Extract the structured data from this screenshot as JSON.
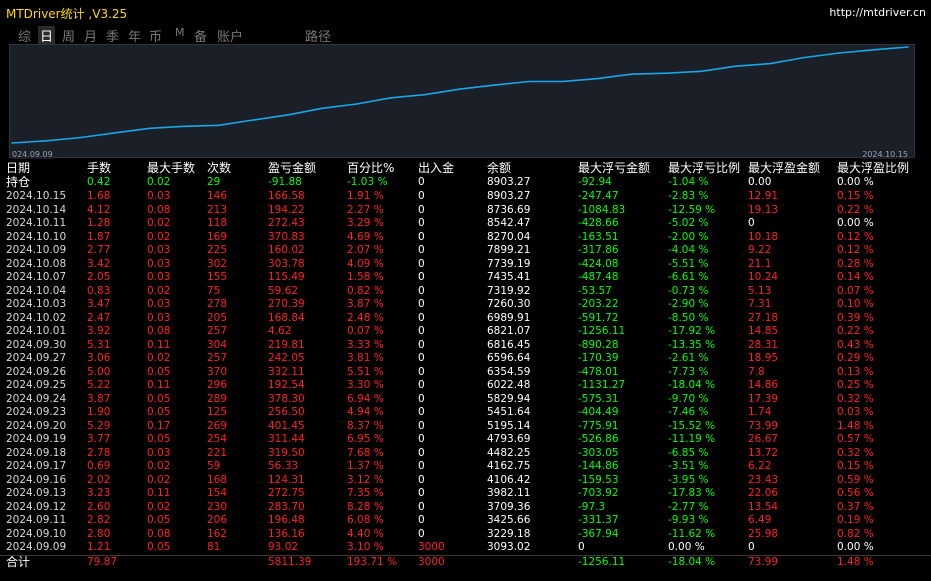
{
  "window": {
    "title": "MTDriver统计 ,V3.25",
    "url": "http://mtdriver.cn"
  },
  "tabs": [
    {
      "label": "综",
      "active": false
    },
    {
      "label": "日",
      "active": true
    },
    {
      "label": "周",
      "active": false
    },
    {
      "label": "月",
      "active": false
    },
    {
      "label": "季",
      "active": false
    },
    {
      "label": "年",
      "active": false
    },
    {
      "label": "币",
      "active": false
    },
    {
      "label": "M",
      "active": false
    },
    {
      "label": "备",
      "active": false
    },
    {
      "label": "账户",
      "active": false
    },
    {
      "label": "路径",
      "active": false
    }
  ],
  "chart": {
    "start_label": "024.09.09",
    "end_label": "2024.10.15",
    "line_color": "#19a6e8"
  },
  "chart_data": {
    "type": "line",
    "x": [
      "2024.09.09",
      "2024.09.10",
      "2024.09.11",
      "2024.09.12",
      "2024.09.13",
      "2024.09.16",
      "2024.09.17",
      "2024.09.18",
      "2024.09.19",
      "2024.09.20",
      "2024.09.23",
      "2024.09.24",
      "2024.09.25",
      "2024.09.26",
      "2024.09.27",
      "2024.09.30",
      "2024.10.01",
      "2024.10.02",
      "2024.10.03",
      "2024.10.04",
      "2024.10.07",
      "2024.10.08",
      "2024.10.09",
      "2024.10.10",
      "2024.10.11",
      "2024.10.14",
      "2024.10.15"
    ],
    "values": [
      3093.02,
      3229.18,
      3425.66,
      3709.36,
      3982.11,
      4106.42,
      4162.75,
      4482.25,
      4793.69,
      5195.14,
      5451.64,
      5829.94,
      6022.48,
      6354.59,
      6596.64,
      6816.45,
      6821.07,
      6989.91,
      7260.3,
      7319.92,
      7435.41,
      7739.19,
      7899.21,
      8270.04,
      8542.47,
      8736.69,
      8903.27
    ]
  },
  "table": {
    "headers": [
      "日期",
      "手数",
      "最大手数",
      "次数",
      "盈亏金额",
      "百分比%",
      "出入金",
      "余额",
      "最大浮亏金额",
      "最大浮亏比例",
      "最大浮盈金额",
      "最大浮盈比例"
    ],
    "holding": [
      "持仓",
      "0.42",
      "0.02",
      "29",
      "-91.88",
      "-1.03 %",
      "0",
      "8903.27",
      "-92.94",
      "-1.04 %",
      "0.00",
      "0.00 %"
    ],
    "rows": [
      [
        "2024.10.15",
        "1.68",
        "0.03",
        "146",
        "166.58",
        "1.91 %",
        "0",
        "8903.27",
        "-247.47",
        "-2.83 %",
        "12.91",
        "0.15 %"
      ],
      [
        "2024.10.14",
        "4.12",
        "0.08",
        "213",
        "194.22",
        "2.27 %",
        "0",
        "8736.69",
        "-1084.83",
        "-12.59 %",
        "19.13",
        "0.22 %"
      ],
      [
        "2024.10.11",
        "1.28",
        "0.02",
        "118",
        "272.43",
        "3.29 %",
        "0",
        "8542.47",
        "-428.66",
        "-5.02 %",
        "0",
        "0.00 %"
      ],
      [
        "2024.10.10",
        "1.87",
        "0.02",
        "169",
        "370.83",
        "4.69 %",
        "0",
        "8270.04",
        "-163.51",
        "-2.00 %",
        "10.18",
        "0.12 %"
      ],
      [
        "2024.10.09",
        "2.77",
        "0.03",
        "225",
        "160.02",
        "2.07 %",
        "0",
        "7899.21",
        "-317.86",
        "-4.04 %",
        "9.22",
        "0.12 %"
      ],
      [
        "2024.10.08",
        "3.42",
        "0.03",
        "302",
        "303.78",
        "4.09 %",
        "0",
        "7739.19",
        "-424.08",
        "-5.51 %",
        "21.1",
        "0.28 %"
      ],
      [
        "2024.10.07",
        "2.05",
        "0.03",
        "155",
        "115.49",
        "1.58 %",
        "0",
        "7435.41",
        "-487.48",
        "-6.61 %",
        "10.24",
        "0.14 %"
      ],
      [
        "2024.10.04",
        "0.83",
        "0.02",
        "75",
        "59.62",
        "0.82 %",
        "0",
        "7319.92",
        "-53.57",
        "-0.73 %",
        "5.13",
        "0.07 %"
      ],
      [
        "2024.10.03",
        "3.47",
        "0.03",
        "278",
        "270.39",
        "3.87 %",
        "0",
        "7260.30",
        "-203.22",
        "-2.90 %",
        "7.31",
        "0.10 %"
      ],
      [
        "2024.10.02",
        "2.47",
        "0.03",
        "205",
        "168.84",
        "2.48 %",
        "0",
        "6989.91",
        "-591.72",
        "-8.50 %",
        "27.18",
        "0.39 %"
      ],
      [
        "2024.10.01",
        "3.92",
        "0.08",
        "257",
        "4.62",
        "0.07 %",
        "0",
        "6821.07",
        "-1256.11",
        "-17.92 %",
        "14.85",
        "0.22 %"
      ],
      [
        "2024.09.30",
        "5.31",
        "0.11",
        "304",
        "219.81",
        "3.33 %",
        "0",
        "6816.45",
        "-890.28",
        "-13.35 %",
        "28.31",
        "0.43 %"
      ],
      [
        "2024.09.27",
        "3.06",
        "0.02",
        "257",
        "242.05",
        "3.81 %",
        "0",
        "6596.64",
        "-170.39",
        "-2.61 %",
        "18.95",
        "0.29 %"
      ],
      [
        "2024.09.26",
        "5.00",
        "0.05",
        "370",
        "332.11",
        "5.51 %",
        "0",
        "6354.59",
        "-478.01",
        "-7.73 %",
        "7.8",
        "0.13 %"
      ],
      [
        "2024.09.25",
        "5.22",
        "0.11",
        "296",
        "192.54",
        "3.30 %",
        "0",
        "6022.48",
        "-1131.27",
        "-18.04 %",
        "14.86",
        "0.25 %"
      ],
      [
        "2024.09.24",
        "3.87",
        "0.05",
        "289",
        "378.30",
        "6.94 %",
        "0",
        "5829.94",
        "-575.31",
        "-9.70 %",
        "17.39",
        "0.32 %"
      ],
      [
        "2024.09.23",
        "1.90",
        "0.05",
        "125",
        "256.50",
        "4.94 %",
        "0",
        "5451.64",
        "-404.49",
        "-7.46 %",
        "1.74",
        "0.03 %"
      ],
      [
        "2024.09.20",
        "5.29",
        "0.17",
        "269",
        "401.45",
        "8.37 %",
        "0",
        "5195.14",
        "-775.91",
        "-15.52 %",
        "73.99",
        "1.48 %"
      ],
      [
        "2024.09.19",
        "3.77",
        "0.05",
        "254",
        "311.44",
        "6.95 %",
        "0",
        "4793.69",
        "-526.86",
        "-11.19 %",
        "26.67",
        "0.57 %"
      ],
      [
        "2024.09.18",
        "2.78",
        "0.03",
        "221",
        "319.50",
        "7.68 %",
        "0",
        "4482.25",
        "-303.05",
        "-6.85 %",
        "13.72",
        "0.32 %"
      ],
      [
        "2024.09.17",
        "0.69",
        "0.02",
        "59",
        "56.33",
        "1.37 %",
        "0",
        "4162.75",
        "-144.86",
        "-3.51 %",
        "6.22",
        "0.15 %"
      ],
      [
        "2024.09.16",
        "2.02",
        "0.02",
        "168",
        "124.31",
        "3.12 %",
        "0",
        "4106.42",
        "-159.53",
        "-3.95 %",
        "23.43",
        "0.59 %"
      ],
      [
        "2024.09.13",
        "3.23",
        "0.11",
        "154",
        "272.75",
        "7.35 %",
        "0",
        "3982.11",
        "-703.92",
        "-17.83 %",
        "22.06",
        "0.56 %"
      ],
      [
        "2024.09.12",
        "2.60",
        "0.02",
        "230",
        "283.70",
        "8.28 %",
        "0",
        "3709.36",
        "-97.3",
        "-2.77 %",
        "13.54",
        "0.37 %"
      ],
      [
        "2024.09.11",
        "2.82",
        "0.05",
        "206",
        "196.48",
        "6.08 %",
        "0",
        "3425.66",
        "-331.37",
        "-9.93 %",
        "6.49",
        "0.19 %"
      ],
      [
        "2024.09.10",
        "2.80",
        "0.08",
        "162",
        "136.16",
        "4.40 %",
        "0",
        "3229.18",
        "-367.94",
        "-11.62 %",
        "25.98",
        "0.82 %"
      ],
      [
        "2024.09.09",
        "1.21",
        "0.05",
        "81",
        "93.02",
        "3.10 %",
        "3000",
        "3093.02",
        "0",
        "0.00 %",
        "0",
        "0.00 %"
      ]
    ],
    "total": [
      "合计",
      "79.87",
      "",
      "",
      "5811.39",
      "193.71 %",
      "3000",
      "",
      "-1256.11",
      "-18.04 %",
      "73.99",
      "1.48 %"
    ]
  }
}
